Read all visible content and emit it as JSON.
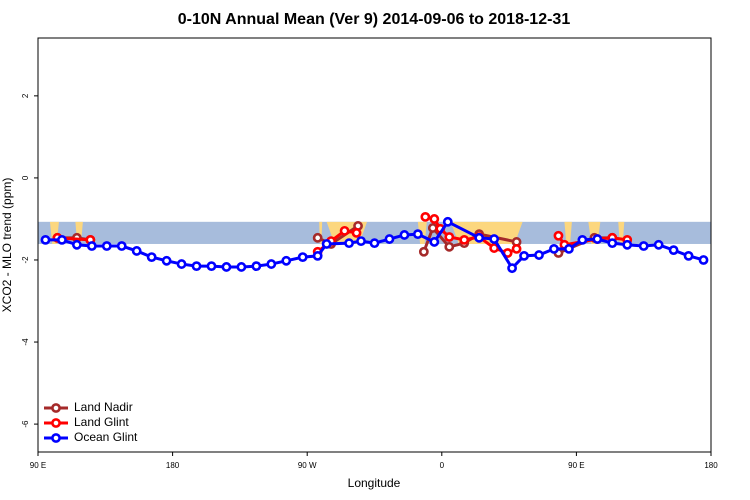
{
  "chart_data": {
    "type": "line",
    "title": "0-10N Annual Mean (Ver 9)   2014-09-06 to 2018-12-31",
    "x_label": "Longitude",
    "y_label": "XCO2 - MLO trend (ppm)",
    "xlim": [
      90,
      540
    ],
    "ylim": [
      -6.68,
      3.41
    ],
    "xticks": [
      {
        "value": 90,
        "label": "90 E"
      },
      180,
      {
        "value": 270,
        "label": "90 W"
      },
      {
        "value": 360,
        "label": "0"
      },
      {
        "value": 450,
        "label": "90 E"
      },
      {
        "value": 540,
        "label": "180"
      }
    ],
    "yticks": [
      -6,
      -4,
      -2,
      0,
      2
    ],
    "band": {
      "range": [
        -1.61,
        -1.07
      ],
      "color": "#a7bcdc"
    },
    "yellow_regions": {
      "color": "#fcd77f",
      "ranges": [
        [
          98,
          104
        ],
        [
          115,
          120
        ],
        [
          278,
          280
        ],
        [
          283,
          310
        ],
        [
          344,
          350
        ],
        [
          366,
          414
        ],
        [
          442,
          447
        ],
        [
          458,
          466
        ],
        [
          478,
          482
        ]
      ]
    },
    "legend": "bottom-left",
    "series": [
      {
        "name": "Land Nadir",
        "color": "#a52a2a",
        "x": [
          103,
          116,
          125,
          null,
          277,
          286,
          304,
          null,
          348,
          354,
          365,
          375,
          385,
          410,
          null,
          438,
          462,
          474
        ],
        "values": [
          -1.46,
          -1.46,
          -1.51,
          null,
          -1.46,
          -1.61,
          -1.17,
          null,
          -1.8,
          -1.22,
          -1.68,
          -1.59,
          -1.37,
          -1.56,
          null,
          -1.83,
          -1.46,
          -1.46
        ]
      },
      {
        "name": "Land Glint",
        "color": "#ff0000",
        "x": [
          103,
          125,
          null,
          277,
          286,
          295,
          303,
          null,
          349,
          355,
          359,
          365,
          375,
          385,
          395,
          404,
          410,
          null,
          438,
          442,
          464,
          474,
          484
        ],
        "values": [
          -1.46,
          -1.51,
          null,
          -1.8,
          -1.54,
          -1.29,
          -1.34,
          null,
          -0.95,
          -1.0,
          -1.24,
          -1.44,
          -1.51,
          -1.44,
          -1.71,
          -1.83,
          -1.73,
          null,
          -1.41,
          -1.63,
          -1.49,
          -1.46,
          -1.51
        ]
      },
      {
        "name": "Ocean Glint",
        "color": "#0000ff",
        "x": [
          95,
          106,
          116,
          126,
          136,
          146,
          156,
          166,
          176,
          186,
          196,
          206,
          216,
          226,
          236,
          246,
          256,
          267,
          277,
          283,
          298,
          306,
          315,
          325,
          335,
          344,
          355,
          364,
          385,
          395,
          407,
          415,
          425,
          435,
          445,
          454,
          464,
          474,
          484,
          495,
          505,
          515,
          525,
          535
        ],
        "values": [
          -1.51,
          -1.51,
          -1.63,
          -1.66,
          -1.66,
          -1.66,
          -1.78,
          -1.93,
          -2.02,
          -2.1,
          -2.15,
          -2.15,
          -2.17,
          -2.17,
          -2.15,
          -2.1,
          -2.02,
          -1.93,
          -1.9,
          -1.61,
          -1.59,
          -1.54,
          -1.59,
          -1.49,
          -1.39,
          -1.37,
          -1.56,
          -1.07,
          -1.46,
          -1.49,
          -2.2,
          -1.9,
          -1.88,
          -1.73,
          -1.73,
          -1.51,
          -1.49,
          -1.59,
          -1.63,
          -1.66,
          -1.63,
          -1.76,
          -1.9,
          -2.0
        ]
      }
    ]
  }
}
